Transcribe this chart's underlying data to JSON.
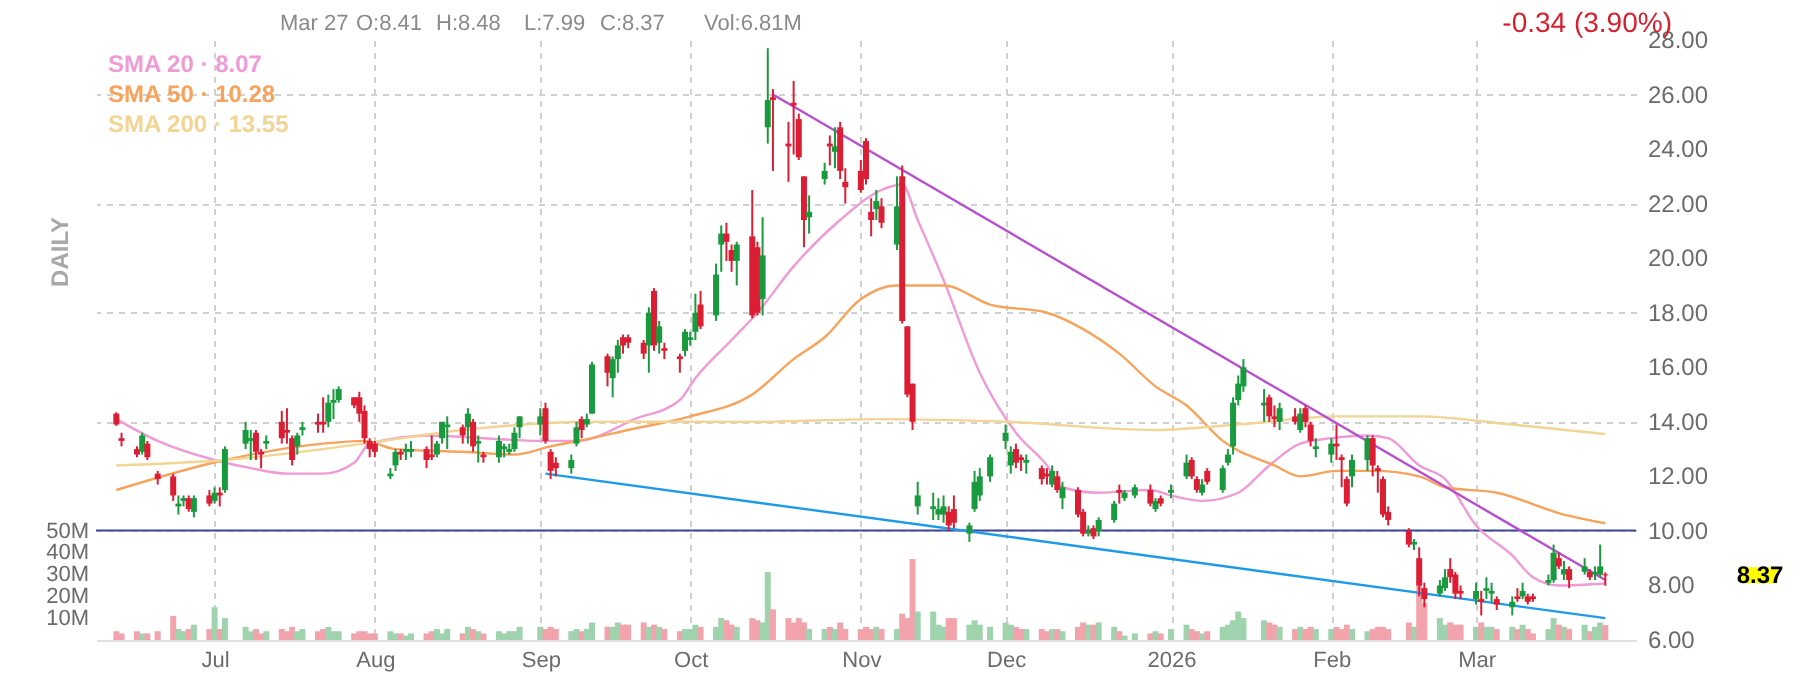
{
  "chart_data": {
    "type": "candlestick",
    "x": [
      "2025-06-12",
      "2025-06-13",
      "2025-06-16",
      "2025-06-17",
      "2025-06-18",
      "2025-06-20",
      "2025-06-23",
      "2025-06-24",
      "2025-06-25",
      "2025-06-26",
      "2025-06-27",
      "2025-06-30",
      "2025-07-01",
      "2025-07-02",
      "2025-07-03",
      "2025-07-07",
      "2025-07-08",
      "2025-07-09",
      "2025-07-10",
      "2025-07-11",
      "2025-07-14",
      "2025-07-15",
      "2025-07-16",
      "2025-07-17",
      "2025-07-18",
      "2025-07-21",
      "2025-07-22",
      "2025-07-23",
      "2025-07-24",
      "2025-07-25",
      "2025-07-28",
      "2025-07-29",
      "2025-07-30",
      "2025-07-31",
      "2025-08-01",
      "2025-08-04",
      "2025-08-05",
      "2025-08-06",
      "2025-08-07",
      "2025-08-08",
      "2025-08-11",
      "2025-08-12",
      "2025-08-13",
      "2025-08-14",
      "2025-08-15",
      "2025-08-18",
      "2025-08-19",
      "2025-08-20",
      "2025-08-21",
      "2025-08-22",
      "2025-08-25",
      "2025-08-26",
      "2025-08-27",
      "2025-08-28",
      "2025-08-29",
      "2025-09-02",
      "2025-09-03",
      "2025-09-04",
      "2025-09-05",
      "2025-09-08",
      "2025-09-09",
      "2025-09-10",
      "2025-09-11",
      "2025-09-12",
      "2025-09-15",
      "2025-09-16",
      "2025-09-17",
      "2025-09-18",
      "2025-09-19",
      "2025-09-22",
      "2025-09-23",
      "2025-09-24",
      "2025-09-25",
      "2025-09-26",
      "2025-09-29",
      "2025-09-30",
      "2025-10-01",
      "2025-10-02",
      "2025-10-03",
      "2025-10-06",
      "2025-10-07",
      "2025-10-08",
      "2025-10-09",
      "2025-10-10",
      "2025-10-13",
      "2025-10-14",
      "2025-10-15",
      "2025-10-16",
      "2025-10-17",
      "2025-10-20",
      "2025-10-21",
      "2025-10-22",
      "2025-10-23",
      "2025-10-24",
      "2025-10-27",
      "2025-10-28",
      "2025-10-29",
      "2025-10-30",
      "2025-10-31",
      "2025-11-03",
      "2025-11-04",
      "2025-11-05",
      "2025-11-06",
      "2025-11-07",
      "2025-11-10",
      "2025-11-11",
      "2025-11-12",
      "2025-11-13",
      "2025-11-14",
      "2025-11-17",
      "2025-11-18",
      "2025-11-19",
      "2025-11-20",
      "2025-11-21",
      "2025-11-24",
      "2025-11-25",
      "2025-11-26",
      "2025-11-28",
      "2025-12-01",
      "2025-12-02",
      "2025-12-03",
      "2025-12-04",
      "2025-12-05",
      "2025-12-08",
      "2025-12-09",
      "2025-12-10",
      "2025-12-11",
      "2025-12-12",
      "2025-12-15",
      "2025-12-16",
      "2025-12-17",
      "2025-12-18",
      "2025-12-19",
      "2025-12-22",
      "2025-12-23",
      "2025-12-24",
      "2025-12-26",
      "2025-12-29",
      "2025-12-30",
      "2025-12-31",
      "2026-01-02",
      "2026-01-05",
      "2026-01-06",
      "2026-01-07",
      "2026-01-08",
      "2026-01-09",
      "2026-01-12",
      "2026-01-13",
      "2026-01-14",
      "2026-01-15",
      "2026-01-16",
      "2026-01-20",
      "2026-01-21",
      "2026-01-22",
      "2026-01-23",
      "2026-01-26",
      "2026-01-27",
      "2026-01-28",
      "2026-01-29",
      "2026-01-30",
      "2026-02-02",
      "2026-02-03",
      "2026-02-04",
      "2026-02-05",
      "2026-02-06",
      "2026-02-09",
      "2026-02-10",
      "2026-02-11",
      "2026-02-12",
      "2026-02-13",
      "2026-02-17",
      "2026-02-18",
      "2026-02-19",
      "2026-02-20",
      "2026-02-23",
      "2026-02-24",
      "2026-02-25",
      "2026-02-26",
      "2026-02-27",
      "2026-03-02",
      "2026-03-03",
      "2026-03-04",
      "2026-03-05",
      "2026-03-06",
      "2026-03-09",
      "2026-03-10",
      "2026-03-11",
      "2026-03-12",
      "2026-03-13",
      "2026-03-16",
      "2026-03-17",
      "2026-03-18",
      "2026-03-19",
      "2026-03-20",
      "2026-03-23",
      "2026-03-24",
      "2026-03-25",
      "2026-03-26",
      "2026-03-27"
    ],
    "ohlc": [
      [
        14.3,
        14.35,
        13.85,
        13.9
      ],
      [
        13.4,
        13.6,
        13.1,
        13.3
      ],
      [
        13.0,
        13.1,
        12.7,
        12.8
      ],
      [
        12.9,
        13.6,
        12.8,
        13.5
      ],
      [
        13.2,
        13.3,
        12.6,
        12.7
      ],
      [
        12.1,
        12.2,
        11.7,
        11.9
      ],
      [
        12.0,
        12.1,
        11.1,
        11.3
      ],
      [
        10.9,
        11.3,
        10.6,
        11.0
      ],
      [
        11.1,
        11.3,
        10.9,
        11.2
      ],
      [
        11.2,
        11.3,
        10.7,
        10.8
      ],
      [
        10.7,
        11.3,
        10.5,
        11.2
      ],
      [
        11.3,
        11.5,
        10.9,
        11.0
      ],
      [
        11.1,
        11.6,
        11.0,
        11.4
      ],
      [
        11.4,
        11.6,
        10.9,
        11.3
      ],
      [
        11.5,
        13.1,
        11.4,
        13.0
      ],
      [
        13.2,
        14.0,
        13.0,
        13.7
      ],
      [
        13.3,
        13.7,
        12.6,
        13.4
      ],
      [
        13.6,
        13.7,
        12.6,
        12.9
      ],
      [
        12.9,
        13.0,
        12.3,
        12.8
      ],
      [
        13.2,
        13.5,
        13.0,
        13.3
      ],
      [
        14.0,
        14.4,
        13.2,
        13.4
      ],
      [
        13.7,
        14.5,
        13.2,
        13.6
      ],
      [
        13.4,
        13.5,
        12.4,
        12.6
      ],
      [
        13.1,
        13.6,
        12.8,
        13.5
      ],
      [
        13.7,
        14.0,
        13.5,
        13.8
      ],
      [
        14.0,
        14.3,
        13.6,
        13.9
      ],
      [
        14.0,
        14.9,
        13.6,
        13.9
      ],
      [
        14.0,
        15.0,
        13.8,
        14.7
      ],
      [
        14.7,
        15.2,
        14.1,
        14.8
      ],
      [
        14.8,
        15.3,
        14.7,
        15.2
      ],
      [
        14.9,
        14.9,
        14.5,
        14.6
      ],
      [
        14.9,
        15.1,
        14.0,
        14.3
      ],
      [
        14.4,
        14.6,
        13.2,
        13.4
      ],
      [
        13.3,
        13.4,
        12.7,
        13.0
      ],
      [
        13.2,
        13.3,
        12.7,
        12.9
      ],
      [
        12.0,
        12.3,
        11.9,
        12.1
      ],
      [
        12.4,
        13.0,
        12.2,
        12.9
      ],
      [
        12.9,
        13.0,
        12.6,
        12.8
      ],
      [
        12.9,
        13.2,
        12.6,
        13.0
      ],
      [
        12.9,
        13.3,
        12.7,
        13.0
      ],
      [
        13.0,
        13.1,
        12.3,
        12.6
      ],
      [
        12.8,
        13.5,
        12.6,
        12.7
      ],
      [
        12.8,
        13.3,
        12.7,
        13.2
      ],
      [
        13.4,
        14.0,
        13.2,
        14.0
      ],
      [
        13.8,
        14.2,
        13.0,
        13.9
      ],
      [
        13.8,
        13.9,
        13.2,
        13.5
      ],
      [
        13.8,
        14.5,
        13.2,
        14.3
      ],
      [
        14.0,
        14.1,
        12.9,
        13.1
      ],
      [
        13.2,
        13.5,
        12.5,
        13.3
      ],
      [
        12.8,
        12.9,
        12.5,
        12.7
      ],
      [
        12.7,
        13.5,
        12.5,
        13.3
      ],
      [
        13.0,
        13.2,
        12.7,
        13.1
      ],
      [
        12.9,
        13.2,
        12.8,
        13.0
      ],
      [
        13.0,
        13.8,
        12.9,
        13.6
      ],
      [
        13.8,
        14.2,
        13.4,
        14.2
      ],
      [
        13.9,
        14.5,
        13.5,
        14.2
      ],
      [
        14.5,
        14.7,
        13.2,
        13.3
      ],
      [
        12.9,
        13.0,
        11.9,
        12.2
      ],
      [
        12.5,
        12.7,
        12.0,
        12.3
      ],
      [
        12.3,
        12.8,
        12.1,
        12.6
      ],
      [
        13.2,
        14.0,
        13.1,
        13.8
      ],
      [
        14.1,
        14.2,
        13.4,
        13.7
      ],
      [
        13.9,
        14.3,
        13.8,
        14.1
      ],
      [
        14.3,
        16.2,
        14.3,
        16.1
      ],
      [
        16.4,
        16.5,
        15.3,
        15.8
      ],
      [
        15.6,
        16.4,
        14.9,
        16.3
      ],
      [
        16.3,
        17.0,
        15.8,
        16.8
      ],
      [
        17.1,
        17.2,
        16.5,
        16.8
      ],
      [
        17.1,
        17.2,
        16.7,
        16.9
      ],
      [
        16.9,
        17.0,
        16.3,
        16.5
      ],
      [
        16.8,
        18.2,
        15.8,
        18.0
      ],
      [
        18.8,
        18.9,
        16.6,
        16.8
      ],
      [
        16.9,
        17.7,
        16.5,
        17.5
      ],
      [
        16.7,
        16.9,
        16.3,
        16.6
      ],
      [
        16.4,
        16.5,
        15.8,
        16.3
      ],
      [
        16.6,
        17.4,
        16.4,
        17.3
      ],
      [
        17.0,
        17.3,
        16.8,
        17.1
      ],
      [
        17.3,
        18.7,
        17.0,
        18.0
      ],
      [
        18.3,
        18.8,
        17.4,
        17.5
      ],
      [
        17.9,
        19.8,
        17.7,
        19.4
      ],
      [
        20.5,
        21.2,
        19.5,
        20.9
      ],
      [
        20.9,
        21.3,
        19.9,
        20.6
      ],
      [
        20.3,
        20.5,
        19.5,
        19.9
      ],
      [
        19.9,
        20.6,
        19.0,
        20.5
      ],
      [
        20.8,
        22.5,
        17.8,
        17.9
      ],
      [
        20.4,
        20.6,
        17.9,
        18.0
      ],
      [
        18.5,
        21.5,
        17.9,
        20.1
      ],
      [
        24.8,
        27.7,
        24.2,
        25.8
      ],
      [
        25.9,
        26.2,
        23.2,
        25.8
      ],
      [
        24.2,
        25.0,
        22.8,
        24.1
      ],
      [
        25.7,
        26.5,
        23.8,
        25.6
      ],
      [
        25.1,
        25.3,
        23.6,
        23.7
      ],
      [
        23.0,
        23.0,
        20.4,
        21.4
      ],
      [
        21.5,
        22.3,
        20.9,
        21.7
      ],
      [
        22.9,
        23.5,
        22.7,
        23.2
      ],
      [
        24.2,
        24.5,
        23.4,
        24.1
      ],
      [
        23.9,
        24.8,
        23.3,
        24.1
      ],
      [
        24.8,
        25.0,
        22.9,
        23.2
      ],
      [
        22.8,
        23.3,
        22.0,
        22.6
      ],
      [
        23.2,
        23.6,
        22.4,
        22.5
      ],
      [
        24.3,
        24.4,
        22.7,
        22.9
      ],
      [
        21.7,
        22.2,
        20.8,
        21.4
      ],
      [
        21.8,
        22.5,
        21.4,
        22.1
      ],
      [
        21.9,
        22.2,
        21.1,
        21.3
      ],
      [
        20.5,
        23.0,
        20.3,
        21.9
      ],
      [
        23.0,
        23.4,
        17.6,
        17.7
      ],
      [
        17.5,
        17.5,
        14.9,
        15.0
      ],
      [
        15.4,
        15.4,
        13.7,
        14.0
      ],
      [
        10.9,
        11.8,
        10.6,
        11.3
      ],
      [
        10.8,
        11.4,
        10.4,
        10.9
      ],
      [
        10.6,
        11.2,
        10.4,
        10.8
      ],
      [
        10.6,
        11.3,
        10.3,
        10.9
      ],
      [
        10.7,
        10.9,
        10.0,
        10.2
      ],
      [
        10.8,
        11.3,
        10.1,
        10.3
      ],
      [
        9.9,
        10.3,
        9.6,
        10.2
      ],
      [
        10.8,
        12.2,
        10.7,
        11.8
      ],
      [
        11.3,
        12.3,
        11.1,
        12.0
      ],
      [
        12.0,
        12.8,
        11.8,
        12.7
      ],
      [
        13.3,
        13.9,
        13.0,
        13.6
      ],
      [
        12.4,
        13.1,
        12.1,
        12.9
      ],
      [
        13.0,
        13.2,
        12.3,
        12.5
      ],
      [
        12.7,
        12.8,
        12.2,
        12.6
      ],
      [
        12.5,
        12.8,
        12.1,
        12.6
      ],
      [
        12.3,
        12.4,
        11.7,
        11.9
      ],
      [
        12.1,
        12.3,
        11.7,
        12.0
      ],
      [
        11.7,
        12.4,
        11.6,
        12.2
      ],
      [
        12.0,
        12.2,
        11.4,
        11.5
      ],
      [
        11.2,
        11.8,
        10.8,
        11.6
      ],
      [
        11.5,
        11.6,
        10.5,
        10.6
      ],
      [
        10.7,
        10.8,
        9.8,
        9.9
      ],
      [
        9.9,
        10.2,
        9.8,
        10.0
      ],
      [
        10.1,
        10.2,
        9.7,
        9.8
      ],
      [
        10.0,
        10.5,
        9.8,
        10.4
      ],
      [
        10.4,
        11.1,
        10.3,
        11.0
      ],
      [
        11.5,
        11.7,
        11.0,
        11.4
      ],
      [
        11.2,
        11.5,
        11.1,
        11.4
      ],
      [
        11.3,
        11.7,
        11.2,
        11.6
      ],
      [
        11.5,
        11.7,
        10.9,
        11.0
      ],
      [
        10.8,
        11.2,
        10.7,
        11.1
      ],
      [
        11.2,
        11.3,
        10.9,
        11.0
      ],
      [
        11.4,
        11.7,
        11.2,
        11.5
      ],
      [
        12.0,
        12.8,
        11.9,
        12.5
      ],
      [
        12.6,
        12.7,
        11.9,
        12.0
      ],
      [
        11.9,
        12.0,
        11.4,
        11.5
      ],
      [
        11.4,
        11.9,
        11.3,
        11.7
      ],
      [
        12.2,
        12.3,
        11.7,
        11.8
      ],
      [
        11.5,
        12.4,
        11.4,
        12.3
      ],
      [
        12.5,
        13.0,
        12.4,
        12.8
      ],
      [
        13.1,
        14.9,
        12.8,
        14.7
      ],
      [
        14.8,
        15.7,
        14.6,
        15.4
      ],
      [
        15.3,
        16.3,
        15.1,
        16.0
      ],
      [
        14.6,
        15.2,
        14.0,
        14.7
      ],
      [
        14.9,
        15.0,
        14.0,
        14.2
      ],
      [
        14.2,
        14.6,
        13.8,
        14.1
      ],
      [
        14.0,
        14.7,
        13.7,
        14.5
      ],
      [
        14.2,
        14.5,
        13.9,
        14.0
      ],
      [
        13.7,
        14.5,
        13.6,
        14.3
      ],
      [
        14.5,
        14.6,
        13.8,
        14.0
      ],
      [
        13.9,
        14.0,
        13.1,
        13.3
      ],
      [
        13.0,
        13.4,
        12.7,
        13.1
      ],
      [
        12.8,
        13.4,
        12.5,
        13.2
      ],
      [
        13.2,
        13.9,
        12.6,
        13.1
      ],
      [
        12.7,
        12.8,
        11.6,
        12.6
      ],
      [
        11.9,
        12.0,
        10.9,
        11.0
      ],
      [
        12.0,
        12.8,
        11.6,
        12.6
      ],
      [
        12.6,
        13.5,
        12.2,
        13.4
      ],
      [
        13.4,
        13.5,
        12.0,
        12.4
      ],
      [
        12.3,
        12.4,
        11.4,
        12.2
      ],
      [
        11.9,
        12.0,
        10.5,
        10.6
      ],
      [
        10.7,
        10.9,
        10.2,
        10.4
      ],
      [
        10.0,
        10.1,
        9.4,
        9.5
      ],
      [
        9.5,
        9.7,
        9.3,
        9.6
      ],
      [
        9.0,
        9.4,
        7.6,
        8.0
      ],
      [
        7.9,
        8.1,
        7.2,
        7.5
      ],
      [
        7.7,
        8.2,
        7.6,
        8.0
      ],
      [
        7.9,
        8.6,
        7.8,
        8.3
      ],
      [
        8.6,
        9.0,
        8.1,
        8.3
      ],
      [
        8.4,
        8.5,
        7.5,
        7.7
      ],
      [
        7.8,
        8.0,
        7.5,
        7.7
      ],
      [
        7.5,
        8.1,
        7.3,
        7.8
      ],
      [
        7.5,
        7.8,
        6.9,
        7.4
      ],
      [
        7.8,
        8.3,
        7.5,
        7.9
      ],
      [
        7.7,
        8.1,
        7.4,
        7.8
      ],
      [
        7.5,
        7.6,
        7.1,
        7.3
      ],
      [
        7.2,
        7.6,
        6.9,
        7.4
      ],
      [
        7.6,
        7.9,
        7.4,
        7.5
      ],
      [
        7.6,
        8.1,
        7.5,
        7.8
      ],
      [
        7.6,
        7.7,
        7.3,
        7.4
      ],
      [
        7.6,
        7.7,
        7.4,
        7.5
      ],
      [
        8.1,
        8.4,
        8.0,
        8.2
      ],
      [
        8.2,
        9.5,
        8.1,
        9.2
      ],
      [
        9.0,
        9.2,
        8.6,
        8.7
      ],
      [
        8.4,
        8.9,
        8.2,
        8.6
      ],
      [
        8.6,
        8.7,
        7.9,
        8.2
      ],
      [
        8.5,
        9.0,
        8.4,
        8.7
      ],
      [
        8.5,
        8.6,
        8.2,
        8.3
      ],
      [
        8.4,
        8.7,
        8.2,
        8.5
      ],
      [
        8.4,
        9.5,
        8.3,
        8.7
      ],
      [
        8.41,
        8.48,
        7.99,
        8.37
      ]
    ],
    "colors": [
      "#dc1e34",
      "#dc1e34",
      "#dc1e34",
      "#1a9a3e",
      "#dc1e34",
      "#dc1e34",
      "#dc1e34",
      "#1a9a3e",
      "#1a9a3e",
      "#dc1e34",
      "#1a9a3e",
      "#dc1e34",
      "#1a9a3e",
      "#dc1e34",
      "#1a9a3e",
      "#1a9a3e",
      "#1a9a3e",
      "#dc1e34",
      "#dc1e34",
      "#1a9a3e",
      "#dc1e34",
      "#dc1e34",
      "#dc1e34",
      "#1a9a3e",
      "#1a9a3e",
      "#dc1e34",
      "#dc1e34",
      "#1a9a3e",
      "#1a9a3e",
      "#1a9a3e",
      "#dc1e34",
      "#dc1e34",
      "#dc1e34",
      "#dc1e34",
      "#dc1e34",
      "#1a9a3e",
      "#1a9a3e",
      "#dc1e34",
      "#1a9a3e",
      "#1a9a3e",
      "#dc1e34",
      "#dc1e34",
      "#1a9a3e",
      "#1a9a3e",
      "#1a9a3e",
      "#dc1e34",
      "#1a9a3e",
      "#dc1e34",
      "#1a9a3e",
      "#dc1e34",
      "#1a9a3e",
      "#1a9a3e",
      "#1a9a3e",
      "#1a9a3e",
      "#1a9a3e",
      "#1a9a3e",
      "#dc1e34",
      "#dc1e34",
      "#dc1e34",
      "#1a9a3e",
      "#1a9a3e",
      "#dc1e34",
      "#1a9a3e",
      "#1a9a3e",
      "#dc1e34",
      "#1a9a3e",
      "#1a9a3e",
      "#dc1e34",
      "#dc1e34",
      "#dc1e34",
      "#1a9a3e",
      "#dc1e34",
      "#1a9a3e",
      "#dc1e34",
      "#dc1e34",
      "#1a9a3e",
      "#1a9a3e",
      "#1a9a3e",
      "#dc1e34",
      "#1a9a3e",
      "#1a9a3e",
      "#dc1e34",
      "#dc1e34",
      "#1a9a3e",
      "#dc1e34",
      "#dc1e34",
      "#1a9a3e",
      "#1a9a3e",
      "#dc1e34",
      "#dc1e34",
      "#dc1e34",
      "#dc1e34",
      "#dc1e34",
      "#1a9a3e",
      "#1a9a3e",
      "#dc1e34",
      "#1a9a3e",
      "#dc1e34",
      "#dc1e34",
      "#dc1e34",
      "#dc1e34",
      "#dc1e34",
      "#1a9a3e",
      "#dc1e34",
      "#1a9a3e",
      "#dc1e34",
      "#dc1e34",
      "#dc1e34",
      "#1a9a3e",
      "#1a9a3e",
      "#1a9a3e",
      "#1a9a3e",
      "#dc1e34",
      "#dc1e34",
      "#1a9a3e",
      "#1a9a3e",
      "#1a9a3e",
      "#1a9a3e",
      "#1a9a3e",
      "#1a9a3e",
      "#dc1e34",
      "#dc1e34",
      "#1a9a3e",
      "#dc1e34",
      "#dc1e34",
      "#1a9a3e",
      "#dc1e34",
      "#1a9a3e",
      "#dc1e34",
      "#dc1e34",
      "#1a9a3e",
      "#dc1e34",
      "#1a9a3e",
      "#1a9a3e",
      "#dc1e34",
      "#1a9a3e",
      "#1a9a3e",
      "#dc1e34",
      "#1a9a3e",
      "#dc1e34",
      "#1a9a3e",
      "#1a9a3e",
      "#dc1e34",
      "#dc1e34",
      "#1a9a3e",
      "#dc1e34",
      "#1a9a3e",
      "#1a9a3e",
      "#1a9a3e",
      "#1a9a3e",
      "#1a9a3e",
      "#1a9a3e",
      "#dc1e34",
      "#dc1e34",
      "#1a9a3e",
      "#dc1e34",
      "#1a9a3e",
      "#dc1e34",
      "#dc1e34",
      "#1a9a3e",
      "#1a9a3e",
      "#dc1e34",
      "#dc1e34",
      "#dc1e34",
      "#1a9a3e",
      "#1a9a3e",
      "#dc1e34",
      "#dc1e34",
      "#dc1e34",
      "#dc1e34",
      "#dc1e34",
      "#1a9a3e",
      "#dc1e34",
      "#dc1e34",
      "#1a9a3e",
      "#1a9a3e",
      "#dc1e34",
      "#dc1e34",
      "#dc1e34",
      "#1a9a3e",
      "#dc1e34",
      "#1a9a3e",
      "#1a9a3e",
      "#dc1e34",
      "#1a9a3e",
      "#dc1e34",
      "#1a9a3e",
      "#dc1e34",
      "#dc1e34",
      "#1a9a3e",
      "#1a9a3e",
      "#dc1e34",
      "#1a9a3e",
      "#dc1e34",
      "#1a9a3e",
      "#dc1e34",
      "#1a9a3e",
      "#1a9a3e",
      "#dc1e34"
    ],
    "series": [
      {
        "type": "bar",
        "axis": "y2",
        "values": [
          4,
          3,
          4,
          3,
          3,
          4,
          11,
          5,
          4,
          5,
          7,
          5,
          15,
          5,
          10,
          6,
          4,
          5,
          3,
          4,
          5,
          4,
          6,
          4,
          5,
          4,
          5,
          6,
          4,
          4,
          3,
          4,
          4,
          3,
          3,
          4,
          3,
          3,
          2,
          3,
          3,
          4,
          5,
          3,
          5,
          3,
          6,
          5,
          4,
          3,
          4,
          3,
          4,
          4,
          6,
          6,
          5,
          6,
          5,
          4,
          5,
          4,
          5,
          8,
          6,
          6,
          8,
          7,
          7,
          8,
          6,
          7,
          6,
          5,
          4,
          5,
          5,
          7,
          6,
          6,
          10,
          9,
          7,
          6,
          10,
          9,
          8,
          31,
          14,
          10,
          8,
          10,
          8,
          5,
          5,
          6,
          5,
          8,
          5,
          5,
          6,
          5,
          6,
          5,
          5,
          12,
          10,
          37,
          13,
          13,
          7,
          6,
          10,
          10,
          7,
          9,
          7,
          6,
          8,
          7,
          6,
          5,
          5,
          5,
          4,
          5,
          5,
          4,
          6,
          8,
          7,
          7,
          8,
          6,
          4,
          2,
          3,
          3,
          4,
          3,
          5,
          7,
          5,
          4,
          3,
          4,
          6,
          7,
          9,
          13,
          10,
          9,
          8,
          7,
          6,
          5,
          6,
          5,
          6,
          5,
          5,
          6,
          5,
          7,
          5,
          4,
          5,
          6,
          6,
          5,
          8,
          6,
          27,
          17,
          10,
          7,
          8,
          7,
          7,
          6,
          8,
          6,
          6,
          5,
          6,
          5,
          7,
          5,
          3,
          5,
          10,
          7,
          6,
          5,
          7,
          4,
          6,
          8,
          6.81
        ],
        "colors": [
          "#f3a3ab",
          "#f3a3ab",
          "#f3a3ab",
          "#9fd3ae",
          "#f3a3ab",
          "#f3a3ab",
          "#f3a3ab",
          "#9fd3ae",
          "#9fd3ae",
          "#f3a3ab",
          "#9fd3ae",
          "#f3a3ab",
          "#9fd3ae",
          "#f3a3ab",
          "#9fd3ae",
          "#9fd3ae",
          "#9fd3ae",
          "#f3a3ab",
          "#f3a3ab",
          "#9fd3ae",
          "#f3a3ab",
          "#f3a3ab",
          "#f3a3ab",
          "#9fd3ae",
          "#9fd3ae",
          "#f3a3ab",
          "#f3a3ab",
          "#9fd3ae",
          "#9fd3ae",
          "#9fd3ae",
          "#f3a3ab",
          "#f3a3ab",
          "#f3a3ab",
          "#f3a3ab",
          "#f3a3ab",
          "#9fd3ae",
          "#9fd3ae",
          "#f3a3ab",
          "#9fd3ae",
          "#9fd3ae",
          "#f3a3ab",
          "#f3a3ab",
          "#9fd3ae",
          "#9fd3ae",
          "#9fd3ae",
          "#f3a3ab",
          "#9fd3ae",
          "#f3a3ab",
          "#9fd3ae",
          "#f3a3ab",
          "#9fd3ae",
          "#9fd3ae",
          "#9fd3ae",
          "#9fd3ae",
          "#9fd3ae",
          "#9fd3ae",
          "#f3a3ab",
          "#f3a3ab",
          "#f3a3ab",
          "#9fd3ae",
          "#9fd3ae",
          "#f3a3ab",
          "#9fd3ae",
          "#9fd3ae",
          "#f3a3ab",
          "#9fd3ae",
          "#9fd3ae",
          "#f3a3ab",
          "#f3a3ab",
          "#f3a3ab",
          "#9fd3ae",
          "#f3a3ab",
          "#9fd3ae",
          "#f3a3ab",
          "#f3a3ab",
          "#9fd3ae",
          "#9fd3ae",
          "#9fd3ae",
          "#f3a3ab",
          "#9fd3ae",
          "#9fd3ae",
          "#f3a3ab",
          "#f3a3ab",
          "#9fd3ae",
          "#f3a3ab",
          "#f3a3ab",
          "#9fd3ae",
          "#9fd3ae",
          "#f3a3ab",
          "#f3a3ab",
          "#f3a3ab",
          "#f3a3ab",
          "#f3a3ab",
          "#9fd3ae",
          "#9fd3ae",
          "#f3a3ab",
          "#9fd3ae",
          "#f3a3ab",
          "#f3a3ab",
          "#f3a3ab",
          "#f3a3ab",
          "#f3a3ab",
          "#9fd3ae",
          "#f3a3ab",
          "#9fd3ae",
          "#f3a3ab",
          "#f3a3ab",
          "#f3a3ab",
          "#9fd3ae",
          "#9fd3ae",
          "#9fd3ae",
          "#9fd3ae",
          "#f3a3ab",
          "#f3a3ab",
          "#9fd3ae",
          "#9fd3ae",
          "#9fd3ae",
          "#9fd3ae",
          "#9fd3ae",
          "#9fd3ae",
          "#f3a3ab",
          "#f3a3ab",
          "#9fd3ae",
          "#f3a3ab",
          "#f3a3ab",
          "#9fd3ae",
          "#f3a3ab",
          "#9fd3ae",
          "#f3a3ab",
          "#f3a3ab",
          "#9fd3ae",
          "#f3a3ab",
          "#9fd3ae",
          "#9fd3ae",
          "#f3a3ab",
          "#9fd3ae",
          "#9fd3ae",
          "#f3a3ab",
          "#9fd3ae",
          "#f3a3ab",
          "#9fd3ae",
          "#9fd3ae",
          "#f3a3ab",
          "#f3a3ab",
          "#9fd3ae",
          "#f3a3ab",
          "#9fd3ae",
          "#9fd3ae",
          "#9fd3ae",
          "#9fd3ae",
          "#9fd3ae",
          "#9fd3ae",
          "#f3a3ab",
          "#f3a3ab",
          "#9fd3ae",
          "#f3a3ab",
          "#9fd3ae",
          "#f3a3ab",
          "#f3a3ab",
          "#9fd3ae",
          "#9fd3ae",
          "#f3a3ab",
          "#f3a3ab",
          "#f3a3ab",
          "#9fd3ae",
          "#9fd3ae",
          "#f3a3ab",
          "#f3a3ab",
          "#f3a3ab",
          "#f3a3ab",
          "#f3a3ab",
          "#9fd3ae",
          "#f3a3ab",
          "#f3a3ab",
          "#9fd3ae",
          "#9fd3ae",
          "#f3a3ab",
          "#f3a3ab",
          "#f3a3ab",
          "#9fd3ae",
          "#f3a3ab",
          "#9fd3ae",
          "#9fd3ae",
          "#f3a3ab",
          "#9fd3ae",
          "#f3a3ab",
          "#9fd3ae",
          "#f3a3ab",
          "#f3a3ab",
          "#9fd3ae",
          "#9fd3ae",
          "#f3a3ab",
          "#9fd3ae",
          "#f3a3ab",
          "#9fd3ae",
          "#f3a3ab",
          "#9fd3ae",
          "#9fd3ae",
          "#f3a3ab"
        ]
      },
      {
        "type": "line",
        "name": "SMA 20 · 8.07",
        "color": "#f09ad8",
        "x": [
          "2025-06-12",
          "2025-06-20",
          "2025-07-01",
          "2025-07-08",
          "2025-07-15",
          "2025-07-22",
          "2025-07-28",
          "2025-07-31",
          "2025-08-12",
          "2025-08-22",
          "2025-09-02",
          "2025-09-09",
          "2025-09-17",
          "2025-09-19",
          "2025-09-29",
          "2025-10-02",
          "2025-10-09",
          "2025-10-14",
          "2025-10-21",
          "2025-10-30",
          "2025-11-07",
          "2025-11-11",
          "2025-11-14",
          "2025-11-19",
          "2025-11-26",
          "2025-12-03",
          "2025-12-09",
          "2025-12-12",
          "2025-12-19",
          "2025-12-29",
          "2026-01-02",
          "2026-01-08",
          "2026-01-15",
          "2026-01-21",
          "2026-01-27",
          "2026-02-02",
          "2026-02-09",
          "2026-02-13",
          "2026-02-19",
          "2026-02-24",
          "2026-03-02",
          "2026-03-09",
          "2026-03-13",
          "2026-03-18",
          "2026-03-27"
        ],
        "values": [
          14.1,
          13.3,
          12.6,
          12.3,
          12.1,
          12.1,
          12.5,
          13.2,
          13.5,
          13.4,
          13.3,
          13.3,
          13.8,
          14.0,
          14.8,
          15.6,
          17.0,
          18.0,
          19.7,
          21.4,
          22.5,
          22.7,
          21.4,
          19.2,
          15.8,
          13.6,
          12.4,
          11.6,
          11.4,
          11.5,
          11.3,
          11.1,
          11.4,
          12.4,
          13.2,
          13.4,
          13.5,
          13.4,
          12.4,
          11.9,
          10.2,
          9.1,
          8.3,
          8.0,
          8.07
        ]
      },
      {
        "type": "line",
        "name": "SMA 50 · 10.28",
        "color": "#f7a35c",
        "x": [
          "2025-06-12",
          "2025-07-03",
          "2025-07-22",
          "2025-07-30",
          "2025-08-05",
          "2025-08-18",
          "2025-08-28",
          "2025-09-04",
          "2025-09-12",
          "2025-09-19",
          "2025-10-01",
          "2025-10-13",
          "2025-10-21",
          "2025-10-27",
          "2025-11-03",
          "2025-11-10",
          "2025-11-19",
          "2025-11-28",
          "2025-12-09",
          "2025-12-16",
          "2025-12-23",
          "2025-12-30",
          "2026-01-05",
          "2026-01-12",
          "2026-01-22",
          "2026-01-27",
          "2026-02-03",
          "2026-02-10",
          "2026-02-19",
          "2026-02-24",
          "2026-03-06",
          "2026-03-19",
          "2026-03-27"
        ],
        "values": [
          11.5,
          12.6,
          13.2,
          13.3,
          13.0,
          12.9,
          12.8,
          13.1,
          13.4,
          13.7,
          14.2,
          15.0,
          16.3,
          17.1,
          18.5,
          19.0,
          19.0,
          18.3,
          18.0,
          17.4,
          16.5,
          15.3,
          14.6,
          13.3,
          12.4,
          12.0,
          12.2,
          12.2,
          12.0,
          11.6,
          11.4,
          10.6,
          10.28
        ]
      },
      {
        "type": "line",
        "name": "SMA 200 · 13.55",
        "color": "#f2d493",
        "x": [
          "2025-06-12",
          "2025-07-03",
          "2025-07-30",
          "2025-08-18",
          "2025-09-12",
          "2025-10-13",
          "2025-11-07",
          "2025-12-01",
          "2025-12-30",
          "2026-01-15",
          "2026-02-03",
          "2026-02-19",
          "2026-03-09",
          "2026-03-27"
        ],
        "values": [
          12.4,
          12.6,
          13.2,
          13.7,
          14.0,
          14.0,
          14.1,
          14.0,
          13.7,
          13.9,
          14.2,
          14.2,
          13.9,
          13.55
        ]
      },
      {
        "type": "line",
        "color": "#b84fd1",
        "x": [
          "2025-10-17",
          "2026-03-27"
        ],
        "values": [
          26.0,
          8.2
        ]
      },
      {
        "type": "line",
        "color": "#1e9be8",
        "x": [
          "2025-09-03",
          "2026-03-27"
        ],
        "values": [
          12.1,
          6.8
        ]
      }
    ],
    "xlim": [
      "2025-06-10",
      "2026-03-31"
    ],
    "xticks": [
      {
        "value": "2025-07-01",
        "label": "Jul"
      },
      {
        "value": "2025-08-01",
        "label": "Aug"
      },
      {
        "value": "2025-09-02",
        "label": "Sep"
      },
      {
        "value": "2025-10-01",
        "label": "Oct"
      },
      {
        "value": "2025-11-03",
        "label": "Nov"
      },
      {
        "value": "2025-12-01",
        "label": "Dec"
      },
      {
        "value": "2026-01-02",
        "label": "2026"
      },
      {
        "value": "2026-02-02",
        "label": "Feb"
      },
      {
        "value": "2026-03-02",
        "label": "Mar"
      }
    ],
    "ylim": [
      6,
      28
    ],
    "yticks": [
      {
        "value": 6,
        "label": "6.00"
      },
      {
        "value": 8,
        "label": "8.00"
      },
      {
        "value": 10,
        "label": "10.00"
      },
      {
        "value": 12,
        "label": "12.00"
      },
      {
        "value": 14,
        "label": "14.00"
      },
      {
        "value": 16,
        "label": "16.00"
      },
      {
        "value": 18,
        "label": "18.00"
      },
      {
        "value": 20,
        "label": "20.00"
      },
      {
        "value": 22,
        "label": "22.00"
      },
      {
        "value": 24,
        "label": "24.00"
      },
      {
        "value": 26,
        "label": "26.00"
      },
      {
        "value": 28,
        "label": "28.00"
      }
    ],
    "y2lim": [
      0,
      274
    ],
    "y2ticks": [
      {
        "value": 10,
        "label": "10M"
      },
      {
        "value": 20,
        "label": "20M"
      },
      {
        "value": 30,
        "label": "30M"
      },
      {
        "value": 40,
        "label": "40M"
      },
      {
        "value": 50,
        "label": "50M"
      }
    ],
    "ref_lines": [
      {
        "axis": "y2",
        "value": 50,
        "color": "#3c4796"
      }
    ],
    "annotations": [
      "Mar 27",
      "O:8.41",
      "H:8.48",
      "L:7.99",
      "C:8.37",
      "Vol:6.81M",
      "-0.34 (3.90%)",
      "DAILY",
      "8.37"
    ],
    "legend": "top left",
    "grid": true
  }
}
